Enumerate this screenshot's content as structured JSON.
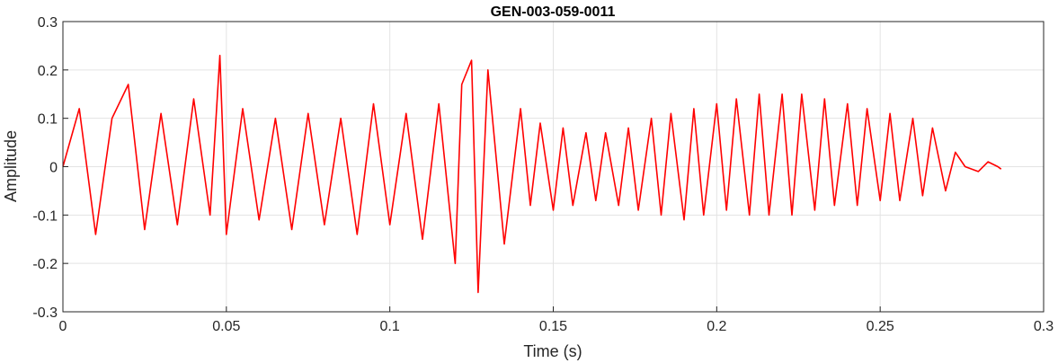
{
  "chart_data": {
    "type": "line",
    "title": "GEN-003-059-0011",
    "xlabel": "Time (s)",
    "ylabel": "Amplitude",
    "xlim": [
      0,
      0.3
    ],
    "ylim": [
      -0.3,
      0.3
    ],
    "xticks": [
      0,
      0.05,
      0.1,
      0.15,
      0.2,
      0.25,
      0.3
    ],
    "xtick_labels": [
      "0",
      "0.05",
      "0.1",
      "0.15",
      "0.2",
      "0.25",
      "0.3"
    ],
    "yticks": [
      -0.3,
      -0.2,
      -0.1,
      0,
      0.1,
      0.2,
      0.3
    ],
    "ytick_labels": [
      "-0.3",
      "-0.2",
      "-0.1",
      "0",
      "0.1",
      "0.2",
      "0.3"
    ],
    "grid": true,
    "line_color": "#ff0000",
    "series": [
      {
        "x": [
          0,
          0.005,
          0.01,
          0.015,
          0.02,
          0.025,
          0.03,
          0.035,
          0.04,
          0.045,
          0.048,
          0.05,
          0.055,
          0.06,
          0.065,
          0.07,
          0.075,
          0.08,
          0.085,
          0.09,
          0.095,
          0.1,
          0.105,
          0.11,
          0.115,
          0.12,
          0.122,
          0.125,
          0.127,
          0.13,
          0.135,
          0.14,
          0.143,
          0.146,
          0.15,
          0.153,
          0.156,
          0.16,
          0.163,
          0.166,
          0.17,
          0.173,
          0.176,
          0.18,
          0.183,
          0.186,
          0.19,
          0.193,
          0.196,
          0.2,
          0.203,
          0.206,
          0.21,
          0.213,
          0.216,
          0.22,
          0.223,
          0.226,
          0.23,
          0.233,
          0.236,
          0.24,
          0.243,
          0.246,
          0.25,
          0.253,
          0.256,
          0.26,
          0.263,
          0.266,
          0.27,
          0.273,
          0.276,
          0.28,
          0.283,
          0.286,
          0.287
        ],
        "y": [
          0.0,
          0.12,
          -0.14,
          0.1,
          0.17,
          -0.13,
          0.11,
          -0.12,
          0.14,
          -0.1,
          0.23,
          -0.14,
          0.12,
          -0.11,
          0.1,
          -0.13,
          0.11,
          -0.12,
          0.1,
          -0.14,
          0.13,
          -0.12,
          0.11,
          -0.15,
          0.13,
          -0.2,
          0.17,
          0.22,
          -0.26,
          0.2,
          -0.16,
          0.12,
          -0.08,
          0.09,
          -0.09,
          0.08,
          -0.08,
          0.07,
          -0.07,
          0.07,
          -0.08,
          0.08,
          -0.09,
          0.1,
          -0.1,
          0.11,
          -0.11,
          0.12,
          -0.1,
          0.13,
          -0.09,
          0.14,
          -0.1,
          0.15,
          -0.1,
          0.15,
          -0.1,
          0.15,
          -0.09,
          0.14,
          -0.08,
          0.13,
          -0.08,
          0.12,
          -0.07,
          0.11,
          -0.07,
          0.1,
          -0.06,
          0.08,
          -0.05,
          0.03,
          0.0,
          -0.01,
          0.01,
          0.0,
          -0.005
        ]
      }
    ]
  }
}
